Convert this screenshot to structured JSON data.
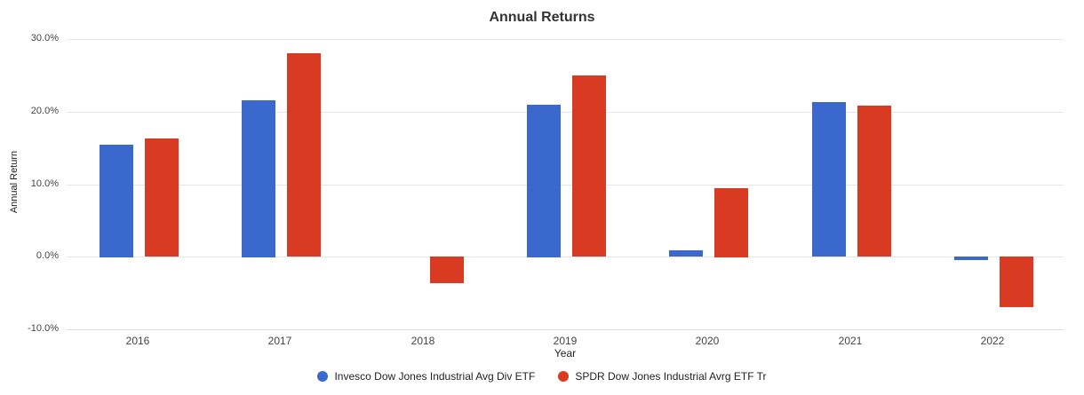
{
  "chart_data": {
    "type": "bar",
    "title": "Annual Returns",
    "xlabel": "Year",
    "ylabel": "Annual Return",
    "categories": [
      "2016",
      "2017",
      "2018",
      "2019",
      "2020",
      "2021",
      "2022"
    ],
    "series": [
      {
        "name": "Invesco Dow Jones Industrial Avg Div ETF",
        "color": "#3B68CD",
        "values": [
          15.5,
          21.6,
          0.0,
          21.0,
          0.9,
          21.3,
          -0.5
        ]
      },
      {
        "name": "SPDR Dow Jones Industrial Avrg ETF Tr",
        "color": "#D93B22",
        "values": [
          16.3,
          28.0,
          -3.7,
          25.0,
          9.5,
          20.8,
          -7.0
        ]
      }
    ],
    "y_ticks": [
      30,
      20,
      10,
      0,
      -10
    ],
    "y_tick_labels": [
      "30.0%",
      "20.0%",
      "10.0%",
      "0.0%",
      "-10.0%"
    ],
    "ylim": [
      -10,
      30
    ],
    "grid": true,
    "legend_position": "bottom",
    "background_color": "#ffffff",
    "gridline_color": "#e6e6e6"
  }
}
